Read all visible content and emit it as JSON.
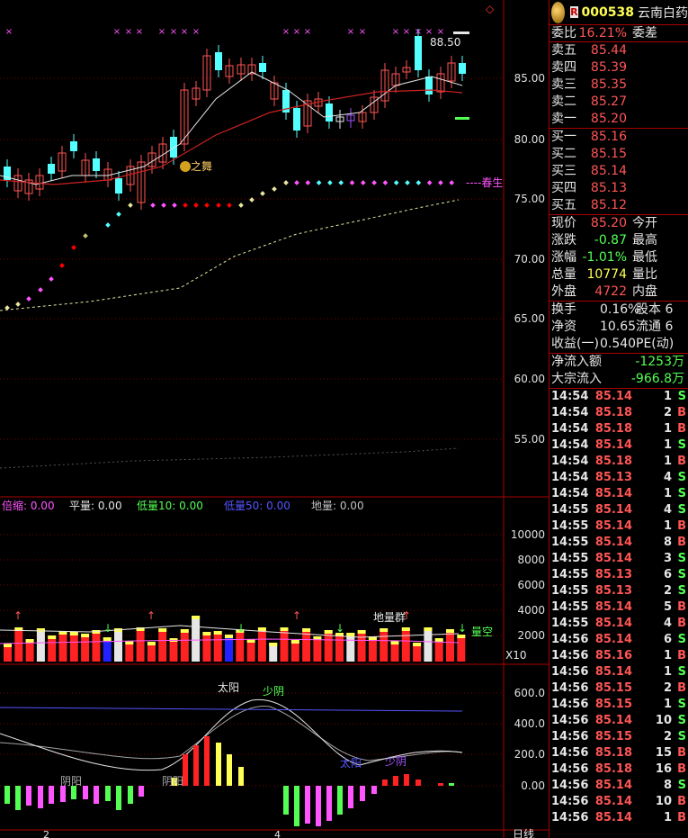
{
  "header": {
    "badge": "R",
    "code": "000538",
    "name": "云南白药",
    "alert_icon": "diamond-icon"
  },
  "ratio": {
    "label": "委比",
    "value": "16.21%",
    "label2": "委差"
  },
  "asks": [
    {
      "label": "卖五",
      "price": "85.44"
    },
    {
      "label": "卖四",
      "price": "85.39"
    },
    {
      "label": "卖三",
      "price": "85.35"
    },
    {
      "label": "卖二",
      "price": "85.27"
    },
    {
      "label": "卖一",
      "price": "85.20"
    }
  ],
  "bids": [
    {
      "label": "买一",
      "price": "85.16"
    },
    {
      "label": "买二",
      "price": "85.15"
    },
    {
      "label": "买三",
      "price": "85.14"
    },
    {
      "label": "买四",
      "price": "85.13"
    },
    {
      "label": "买五",
      "price": "85.12"
    }
  ],
  "quote": [
    {
      "l": "现价",
      "v": "85.20",
      "c": "red",
      "l2": "今开"
    },
    {
      "l": "涨跌",
      "v": "-0.87",
      "c": "grn",
      "l2": "最高"
    },
    {
      "l": "涨幅",
      "v": "-1.01%",
      "c": "grn",
      "l2": "最低"
    },
    {
      "l": "总量",
      "v": "10774",
      "c": "yel",
      "l2": "量比"
    },
    {
      "l": "外盘",
      "v": "4722",
      "c": "red",
      "l2": "内盘"
    }
  ],
  "fund": [
    {
      "l": "换手",
      "v": "0.16%",
      "l2": "股本",
      "v2": "6"
    },
    {
      "l": "净资",
      "v": "10.65",
      "l2": "流通",
      "v2": "6"
    },
    {
      "l": "收益(一)",
      "v": "0.540",
      "l2": "PE(动)",
      "v2": ""
    }
  ],
  "flow": [
    {
      "l": "净流入额",
      "v": "-1253万"
    },
    {
      "l": "大宗流入",
      "v": "-966.8万"
    }
  ],
  "ticks": [
    [
      "14:54",
      "85.14",
      "1",
      "S",
      "grn"
    ],
    [
      "14:54",
      "85.18",
      "2",
      "B",
      "red"
    ],
    [
      "14:54",
      "85.18",
      "1",
      "B",
      "red"
    ],
    [
      "14:54",
      "85.14",
      "1",
      "S",
      "grn"
    ],
    [
      "14:54",
      "85.18",
      "1",
      "B",
      "red"
    ],
    [
      "14:54",
      "85.13",
      "4",
      "S",
      "grn"
    ],
    [
      "14:54",
      "85.14",
      "1",
      "S",
      "grn"
    ],
    [
      "14:55",
      "85.14",
      "4",
      "S",
      "grn"
    ],
    [
      "14:55",
      "85.14",
      "1",
      "B",
      "red"
    ],
    [
      "14:55",
      "85.14",
      "8",
      "B",
      "red"
    ],
    [
      "14:55",
      "85.14",
      "3",
      "S",
      "grn"
    ],
    [
      "14:55",
      "85.13",
      "6",
      "S",
      "grn"
    ],
    [
      "14:55",
      "85.13",
      "2",
      "S",
      "grn"
    ],
    [
      "14:55",
      "85.14",
      "5",
      "B",
      "red"
    ],
    [
      "14:55",
      "85.14",
      "4",
      "B",
      "red"
    ],
    [
      "14:56",
      "85.14",
      "6",
      "S",
      "grn"
    ],
    [
      "14:56",
      "85.16",
      "1",
      "B",
      "red"
    ],
    [
      "14:56",
      "85.14",
      "1",
      "S",
      "grn"
    ],
    [
      "14:56",
      "85.15",
      "2",
      "B",
      "red"
    ],
    [
      "14:56",
      "85.15",
      "1",
      "S",
      "grn"
    ],
    [
      "14:56",
      "85.14",
      "10",
      "S",
      "grn"
    ],
    [
      "14:56",
      "85.15",
      "2",
      "S",
      "grn"
    ],
    [
      "14:56",
      "85.18",
      "15",
      "B",
      "red"
    ],
    [
      "14:56",
      "85.18",
      "16",
      "B",
      "red"
    ],
    [
      "14:56",
      "85.14",
      "8",
      "S",
      "grn"
    ],
    [
      "14:56",
      "85.14",
      "10",
      "B",
      "red"
    ],
    [
      "14:56",
      "85.14",
      "1",
      "B",
      "red"
    ]
  ],
  "indicator_bar": {
    "items": [
      {
        "label": "倍缩:",
        "value": "0.00",
        "color": "#ff55ff"
      },
      {
        "label": "平量:",
        "value": "0.00",
        "color": "#e6e6e6"
      },
      {
        "label": "低量10:",
        "value": "0.00",
        "color": "#54ff54"
      },
      {
        "label": "低量50:",
        "value": "0.00",
        "color": "#5555ff"
      },
      {
        "label": "地量:",
        "value": "0.00",
        "color": "#c0c0c0"
      }
    ]
  },
  "chart_text": {
    "hi_mark": "88.50",
    "dance": "之舞",
    "spring": "----春生",
    "vol_note": "地量群",
    "vol_empty": "量空",
    "x10": "X10",
    "sun1": "太阳",
    "shaoyin1": "少阴",
    "sun2": "太阳",
    "shaoyin2": "少阴",
    "yin1": "阴阳",
    "yin2": "阴阳",
    "bottom_label": "日线",
    "tick2": "2",
    "tick4": "4"
  },
  "chart_data": {
    "type": "candlestick",
    "price_axis": [
      "85.00",
      "80.00",
      "75.00",
      "70.00",
      "65.00",
      "60.00",
      "55.00"
    ],
    "volume_axis": [
      "10000",
      "8000",
      "6000",
      "4000",
      "2000"
    ],
    "macd_axis": [
      "600.0",
      "400.0",
      "200.0",
      "0.00"
    ]
  }
}
